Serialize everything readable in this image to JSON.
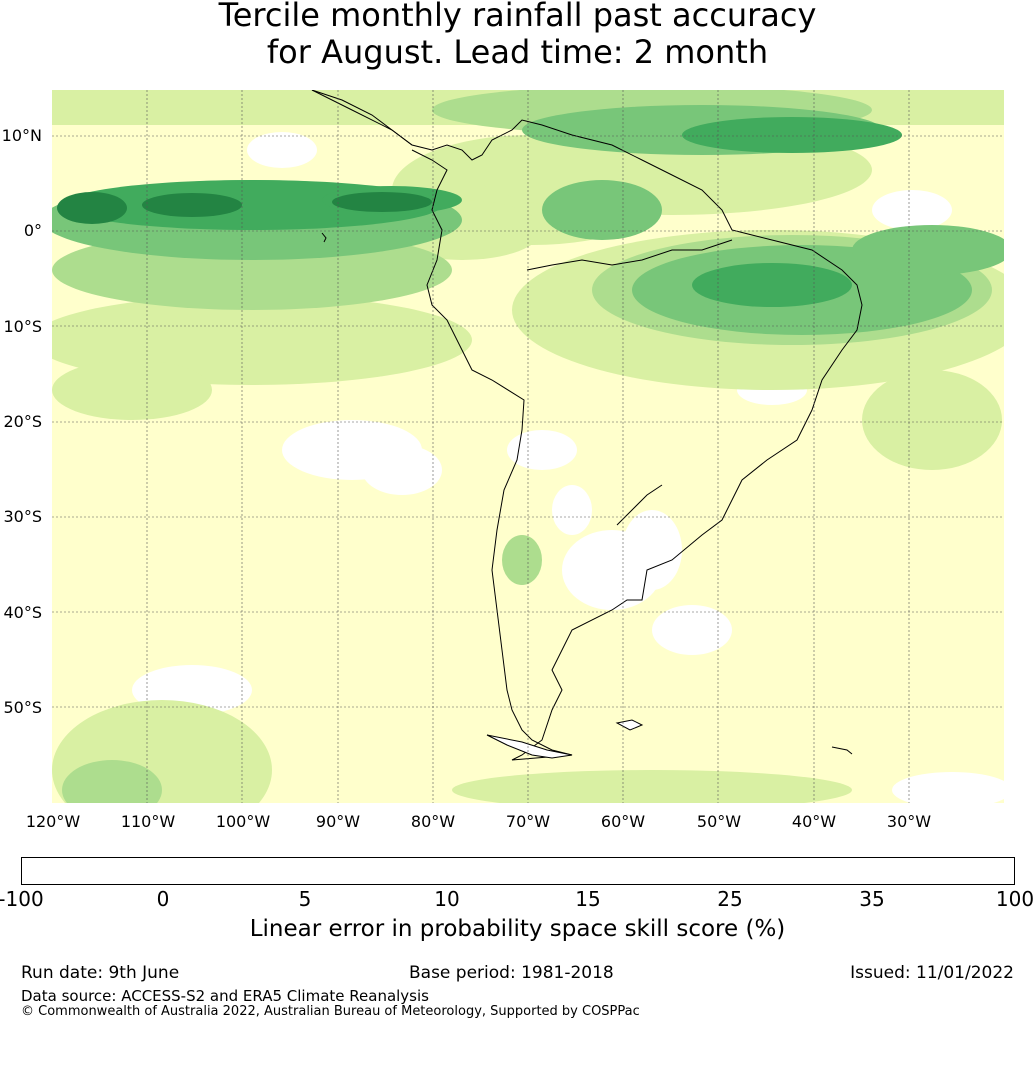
{
  "title": {
    "line1": "Tercile monthly rainfall past accuracy",
    "line2": "for August. Lead time: 2 month"
  },
  "map": {
    "lat_labels": [
      "10°N",
      "0°",
      "10°S",
      "20°S",
      "30°S",
      "40°S",
      "50°S"
    ],
    "lon_labels": [
      "120°W",
      "110°W",
      "100°W",
      "90°W",
      "80°W",
      "70°W",
      "60°W",
      "50°W",
      "40°W",
      "30°W"
    ],
    "lon_range": [
      -125,
      -25
    ],
    "lat_range": [
      -60,
      15
    ],
    "grid": true
  },
  "colorbar": {
    "bin_edges": [
      "-100",
      "0",
      "5",
      "10",
      "15",
      "25",
      "35",
      "100"
    ],
    "colors": [
      "#ffffff",
      "#ffffcc",
      "#d9f0a3",
      "#addd8e",
      "#78c679",
      "#41ab5d",
      "#238443"
    ],
    "label": "Linear error in probability space skill score (%)"
  },
  "footer": {
    "run_date": "Run date: 9th June",
    "base_period": "Base period: 1981-2018",
    "issued": "Issued: 11/01/2022",
    "data_source": "Data source: ACCESS-S2 and ERA5 Climate Reanalysis",
    "copyright": "© Commonwealth of Australia 2022, Australian Bureau of Meteorology, Supported by COSPPac"
  }
}
